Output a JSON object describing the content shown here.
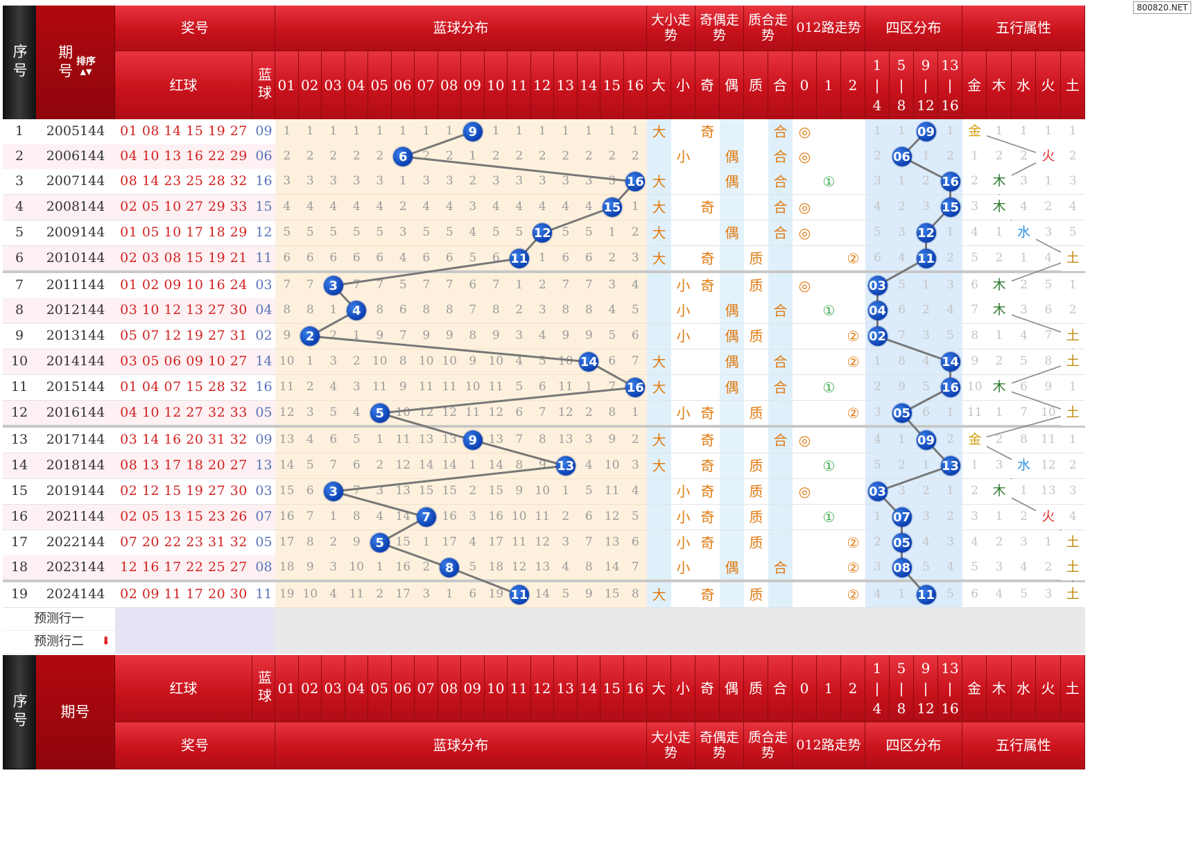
{
  "watermark": "800820.NET",
  "header": {
    "seq": "序号",
    "period": "期号",
    "sort": "排序",
    "prize": "奖号",
    "red": "红球",
    "blue": "蓝球",
    "blue_dist": "蓝球分布",
    "size": "大小走势",
    "parity": "奇偶走势",
    "prime": "质合走势",
    "route": "012路走势",
    "zone": "四区分布",
    "wuxing": "五行属性",
    "balls": [
      "01",
      "02",
      "03",
      "04",
      "05",
      "06",
      "07",
      "08",
      "09",
      "10",
      "11",
      "12",
      "13",
      "14",
      "15",
      "16"
    ],
    "size_cols": [
      "大",
      "小"
    ],
    "parity_cols": [
      "奇",
      "偶"
    ],
    "prime_cols": [
      "质",
      "合"
    ],
    "route_cols": [
      "0",
      "1",
      "2"
    ],
    "zone_cols": [
      [
        "1",
        "|",
        "4"
      ],
      [
        "5",
        "|",
        "8"
      ],
      [
        "9",
        "|",
        "12"
      ],
      [
        "13",
        "|",
        "16"
      ]
    ],
    "wx_cols": [
      "金",
      "木",
      "水",
      "火",
      "土"
    ]
  },
  "predict_rows": [
    "预测行一",
    "预测行二"
  ],
  "colors": {
    "brand_red": "#c9121c",
    "ball_blue": "#0b3fb0",
    "miss_grey": "#9b9b9b"
  },
  "rows": [
    {
      "seq": "1",
      "period": "2005144",
      "red": "01 08 14 15 19 27",
      "blue": "09",
      "dist": [
        1,
        1,
        1,
        1,
        1,
        1,
        1,
        1,
        "9",
        1,
        1,
        1,
        1,
        1,
        1,
        1
      ],
      "size": "大",
      "parity": "奇",
      "prime": "合",
      "route": "◎",
      "route_idx": 0,
      "zone": [
        1,
        1,
        "09",
        1
      ],
      "wx": [
        "金",
        1,
        1,
        1,
        1
      ],
      "wx_idx": 0
    },
    {
      "seq": "2",
      "period": "2006144",
      "red": "04 10 13 16 22 29",
      "blue": "06",
      "dist": [
        2,
        2,
        2,
        2,
        2,
        "6",
        2,
        2,
        1,
        2,
        2,
        2,
        2,
        2,
        2,
        2
      ],
      "size": "小",
      "parity": "偶",
      "prime": "合",
      "route": "◎",
      "route_idx": 0,
      "zone": [
        2,
        "06",
        1,
        2
      ],
      "wx": [
        1,
        2,
        2,
        "火",
        2
      ],
      "wx_idx": 3
    },
    {
      "seq": "3",
      "period": "2007144",
      "red": "08 14 23 25 28 32",
      "blue": "16",
      "dist": [
        3,
        3,
        3,
        3,
        3,
        1,
        3,
        3,
        2,
        3,
        3,
        3,
        3,
        3,
        3,
        "16"
      ],
      "size": "大",
      "parity": "偶",
      "prime": "合",
      "route": "①",
      "route_idx": 1,
      "zone": [
        3,
        1,
        2,
        "16"
      ],
      "wx": [
        2,
        "木",
        3,
        1,
        3
      ],
      "wx_idx": 1
    },
    {
      "seq": "4",
      "period": "2008144",
      "red": "02 05 10 27 29 33",
      "blue": "15",
      "dist": [
        4,
        4,
        4,
        4,
        4,
        2,
        4,
        4,
        3,
        4,
        4,
        4,
        4,
        4,
        "15",
        1
      ],
      "size": "大",
      "parity": "奇",
      "prime": "合",
      "route": "◎",
      "route_idx": 0,
      "zone": [
        4,
        2,
        3,
        "15"
      ],
      "wx": [
        3,
        "木",
        4,
        2,
        4
      ],
      "wx_idx": 1
    },
    {
      "seq": "5",
      "period": "2009144",
      "red": "01 05 10 17 18 29",
      "blue": "12",
      "dist": [
        5,
        5,
        5,
        5,
        5,
        3,
        5,
        5,
        4,
        5,
        5,
        "12",
        5,
        5,
        1,
        2
      ],
      "size": "大",
      "parity": "偶",
      "prime": "合",
      "route": "◎",
      "route_idx": 0,
      "zone": [
        5,
        3,
        "12",
        1
      ],
      "wx": [
        4,
        1,
        "水",
        3,
        5
      ],
      "wx_idx": 2
    },
    {
      "seq": "6",
      "period": "2010144",
      "red": "02 03 08 15 19 21",
      "blue": "11",
      "dist": [
        6,
        6,
        6,
        6,
        6,
        4,
        6,
        6,
        5,
        6,
        "11",
        1,
        6,
        6,
        2,
        3
      ],
      "size": "大",
      "parity": "奇",
      "prime": "质",
      "route": "②",
      "route_idx": 2,
      "zone": [
        6,
        4,
        "11",
        2
      ],
      "wx": [
        5,
        2,
        1,
        4,
        "土"
      ],
      "wx_idx": 4
    },
    {
      "seq": "7",
      "period": "2011144",
      "red": "01 02 09 10 16 24",
      "blue": "03",
      "dist": [
        7,
        7,
        "3",
        7,
        7,
        5,
        7,
        7,
        6,
        7,
        1,
        2,
        7,
        7,
        3,
        4
      ],
      "size": "小",
      "parity": "奇",
      "prime": "质",
      "route": "◎",
      "route_idx": 0,
      "zone": [
        "03",
        5,
        1,
        3
      ],
      "wx": [
        6,
        "木",
        2,
        5,
        1
      ],
      "wx_idx": 1
    },
    {
      "seq": "8",
      "period": "2012144",
      "red": "03 10 12 13 27 30",
      "blue": "04",
      "dist": [
        8,
        8,
        1,
        "4",
        8,
        6,
        8,
        8,
        7,
        8,
        2,
        3,
        8,
        8,
        4,
        5
      ],
      "size": "小",
      "parity": "偶",
      "prime": "合",
      "route": "①",
      "route_idx": 1,
      "zone": [
        "04",
        6,
        2,
        4
      ],
      "wx": [
        7,
        "木",
        3,
        6,
        2
      ],
      "wx_idx": 1
    },
    {
      "seq": "9",
      "period": "2013144",
      "red": "05 07 12 19 27 31",
      "blue": "02",
      "dist": [
        9,
        "2",
        2,
        1,
        9,
        7,
        9,
        9,
        8,
        9,
        3,
        4,
        9,
        9,
        5,
        6
      ],
      "size": "小",
      "parity": "偶",
      "prime": "质",
      "route": "②",
      "route_idx": 2,
      "zone": [
        "02",
        7,
        3,
        5
      ],
      "wx": [
        8,
        1,
        4,
        7,
        "土"
      ],
      "wx_idx": 4
    },
    {
      "seq": "10",
      "period": "2014144",
      "red": "03 05 06 09 10 27",
      "blue": "14",
      "dist": [
        10,
        1,
        3,
        2,
        10,
        8,
        10,
        10,
        9,
        10,
        4,
        5,
        10,
        "14",
        6,
        7
      ],
      "size": "大",
      "parity": "偶",
      "prime": "合",
      "route": "②",
      "route_idx": 2,
      "zone": [
        1,
        8,
        4,
        "14"
      ],
      "wx": [
        9,
        2,
        5,
        8,
        "土"
      ],
      "wx_idx": 4
    },
    {
      "seq": "11",
      "period": "2015144",
      "red": "01 04 07 15 28 32",
      "blue": "16",
      "dist": [
        11,
        2,
        4,
        3,
        11,
        9,
        11,
        11,
        10,
        11,
        5,
        6,
        11,
        1,
        7,
        "16"
      ],
      "size": "大",
      "parity": "偶",
      "prime": "合",
      "route": "①",
      "route_idx": 1,
      "zone": [
        2,
        9,
        5,
        "16"
      ],
      "wx": [
        10,
        "木",
        6,
        9,
        1
      ],
      "wx_idx": 1
    },
    {
      "seq": "12",
      "period": "2016144",
      "red": "04 10 12 27 32 33",
      "blue": "05",
      "dist": [
        12,
        3,
        5,
        4,
        "5",
        10,
        12,
        12,
        11,
        12,
        6,
        7,
        12,
        2,
        8,
        1
      ],
      "size": "小",
      "parity": "奇",
      "prime": "质",
      "route": "②",
      "route_idx": 2,
      "zone": [
        3,
        "05",
        6,
        1
      ],
      "wx": [
        11,
        1,
        7,
        10,
        "土"
      ],
      "wx_idx": 4
    },
    {
      "seq": "13",
      "period": "2017144",
      "red": "03 14 16 20 31 32",
      "blue": "09",
      "dist": [
        13,
        4,
        6,
        5,
        1,
        11,
        13,
        13,
        "9",
        13,
        7,
        8,
        13,
        3,
        9,
        2
      ],
      "size": "大",
      "parity": "奇",
      "prime": "合",
      "route": "◎",
      "route_idx": 0,
      "zone": [
        4,
        1,
        "09",
        2
      ],
      "wx": [
        "金",
        2,
        8,
        11,
        1
      ],
      "wx_idx": 0
    },
    {
      "seq": "14",
      "period": "2018144",
      "red": "08 13 17 18 20 27",
      "blue": "13",
      "dist": [
        14,
        5,
        7,
        6,
        2,
        12,
        14,
        14,
        1,
        14,
        8,
        9,
        "13",
        4,
        10,
        3
      ],
      "size": "大",
      "parity": "奇",
      "prime": "质",
      "route": "①",
      "route_idx": 1,
      "zone": [
        5,
        2,
        1,
        "13"
      ],
      "wx": [
        1,
        3,
        "水",
        12,
        2
      ],
      "wx_idx": 2
    },
    {
      "seq": "15",
      "period": "2019144",
      "red": "02 12 15 19 27 30",
      "blue": "03",
      "dist": [
        15,
        6,
        "3",
        7,
        3,
        13,
        15,
        15,
        2,
        15,
        9,
        10,
        1,
        5,
        11,
        4
      ],
      "size": "小",
      "parity": "奇",
      "prime": "质",
      "route": "◎",
      "route_idx": 0,
      "zone": [
        "03",
        3,
        2,
        1
      ],
      "wx": [
        2,
        "木",
        1,
        13,
        3
      ],
      "wx_idx": 1
    },
    {
      "seq": "16",
      "period": "2021144",
      "red": "02 05 13 15 23 26",
      "blue": "07",
      "dist": [
        16,
        7,
        1,
        8,
        4,
        14,
        "7",
        16,
        3,
        16,
        10,
        11,
        2,
        6,
        12,
        5
      ],
      "size": "小",
      "parity": "奇",
      "prime": "质",
      "route": "①",
      "route_idx": 1,
      "zone": [
        1,
        "07",
        3,
        2
      ],
      "wx": [
        3,
        1,
        2,
        "火",
        4
      ],
      "wx_idx": 3
    },
    {
      "seq": "17",
      "period": "2022144",
      "red": "07 20 22 23 31 32",
      "blue": "05",
      "dist": [
        17,
        8,
        2,
        9,
        "5",
        15,
        1,
        17,
        4,
        17,
        11,
        12,
        3,
        7,
        13,
        6
      ],
      "size": "小",
      "parity": "奇",
      "prime": "质",
      "route": "②",
      "route_idx": 2,
      "zone": [
        2,
        "05",
        4,
        3
      ],
      "wx": [
        4,
        2,
        3,
        1,
        "土"
      ],
      "wx_idx": 4
    },
    {
      "seq": "18",
      "period": "2023144",
      "red": "12 16 17 22 25 27",
      "blue": "08",
      "dist": [
        18,
        9,
        3,
        10,
        1,
        16,
        2,
        "8",
        5,
        18,
        12,
        13,
        4,
        8,
        14,
        7
      ],
      "size": "小",
      "parity": "偶",
      "prime": "合",
      "route": "②",
      "route_idx": 2,
      "zone": [
        3,
        "08",
        5,
        4
      ],
      "wx": [
        5,
        3,
        4,
        2,
        "土"
      ],
      "wx_idx": 4
    },
    {
      "seq": "19",
      "period": "2024144",
      "red": "02 09 11 17 20 30",
      "blue": "11",
      "dist": [
        19,
        10,
        4,
        11,
        2,
        17,
        3,
        1,
        6,
        19,
        "11",
        14,
        5,
        9,
        15,
        8
      ],
      "size": "大",
      "parity": "奇",
      "prime": "质",
      "route": "②",
      "route_idx": 2,
      "zone": [
        4,
        1,
        "11",
        5
      ],
      "wx": [
        6,
        4,
        5,
        3,
        "土"
      ],
      "wx_idx": 4
    }
  ]
}
